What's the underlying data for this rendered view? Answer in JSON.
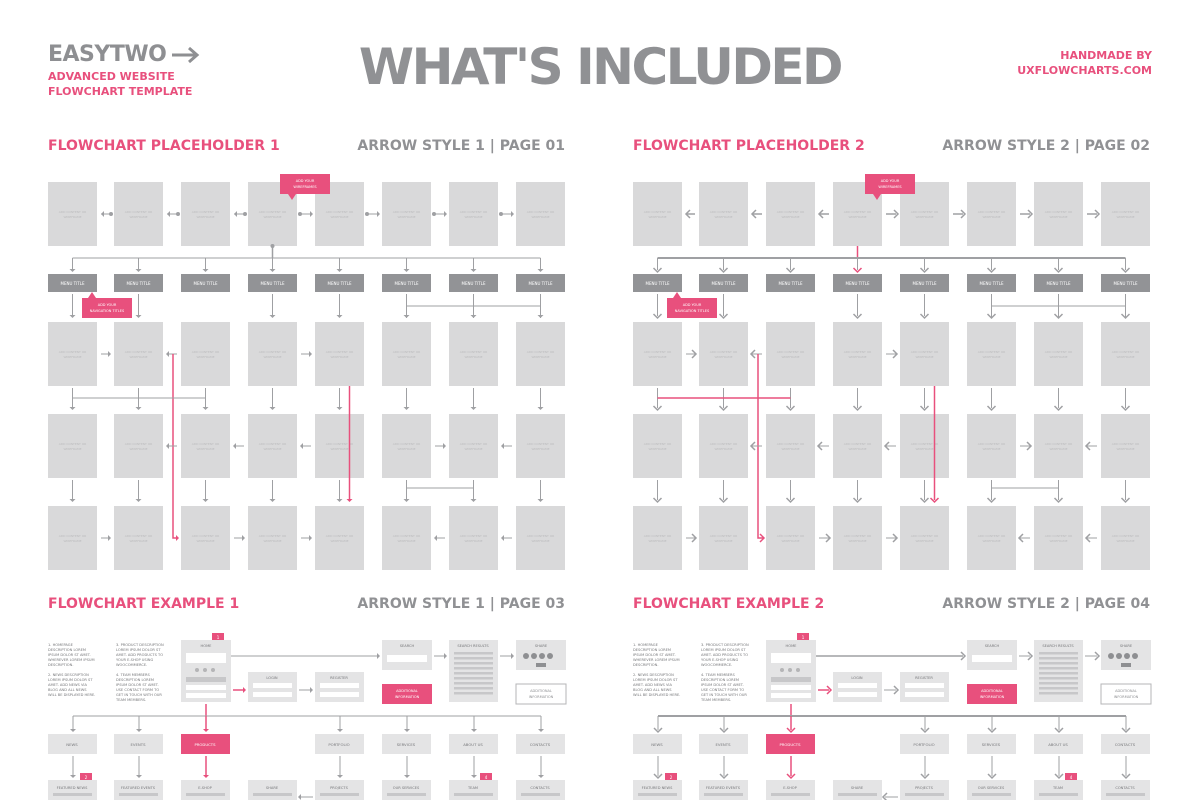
{
  "header": {
    "logo": "EASYTWO",
    "subtitle_lines": [
      "ADVANCED WEBSITE",
      "FLOWCHART TEMPLATE"
    ],
    "title": "WHAT'S INCLUDED",
    "credit_lines": [
      "HANDMADE BY",
      "UXFLOWCHARTS.COM"
    ]
  },
  "colors": {
    "accent": "#e8507d",
    "box": "#d9d9da",
    "dark_box": "#929396",
    "text_gray": "#909194"
  },
  "sections": [
    {
      "title": "FLOWCHART PLACEHOLDER 1",
      "meta": "ARROW STYLE 1 | PAGE 01"
    },
    {
      "title": "FLOWCHART PLACEHOLDER 2",
      "meta": "ARROW STYLE 2 | PAGE 02"
    },
    {
      "title": "FLOWCHART EXAMPLE 1",
      "meta": "ARROW STYLE 1 | PAGE 03"
    },
    {
      "title": "FLOWCHART EXAMPLE 2",
      "meta": "ARROW STYLE 2 | PAGE 04"
    }
  ],
  "placeholder": {
    "box_text": "ADD CONTENT OR WIREFRAME",
    "menu_title": "MENU TITLE",
    "callout_wireframes": "ADD YOUR WIREFRAMES",
    "callout_navigation": "ADD YOUR NAVIGATION TITLES"
  },
  "example": {
    "notes_col1": [
      "1. HOMEPAGE",
      "DESCRIPTION LOREM",
      "IPSUM DOLOR ST AMET.",
      "WHEREVER LOREM IPSUM",
      "DESCRIPTION.",
      "",
      "2. NEWS DESCRIPTION",
      "LOREM IPSUM DOLOR ST",
      "AMET. ADD NEWS VIA",
      "BLOG AND ALL NEWS",
      "WILL BE DISPLAYED HERE."
    ],
    "notes_col2": [
      "3. PRODUCT DESCRIPTION",
      "LOREM IPSUM DOLOR ST",
      "AMET. ADD PRODUCTS TO",
      "YOUR E-SHOP USING",
      "WOOCOMMERCE.",
      "",
      "4. TEAM MEMBERS",
      "DESCRIPTION LOREM",
      "IPSUM DOLOR ST AMET.",
      "USE CONTACT FORM TO",
      "GET IN TOUCH WITH OUR",
      "TEAM MEMBERS."
    ],
    "pages_top": [
      "HOME",
      "LOGIN",
      "REGISTER",
      "SEARCH",
      "SEARCH RESULTS",
      "SHARE"
    ],
    "additional": "ADDITIONAL INFORMATION",
    "nav": [
      "NEWS",
      "EVENTS",
      "PRODUCTS",
      "PORTFOLIO",
      "SERVICES",
      "ABOUT US",
      "CONTACTS"
    ],
    "sub": [
      "FEATURED NEWS",
      "FEATURED EVENTS",
      "E-SHOP",
      "SHARE",
      "PROJECTS",
      "OUR SERVICES",
      "TEAM",
      "CONTACTS"
    ],
    "badges": [
      "1",
      "2",
      "3",
      "4"
    ]
  }
}
